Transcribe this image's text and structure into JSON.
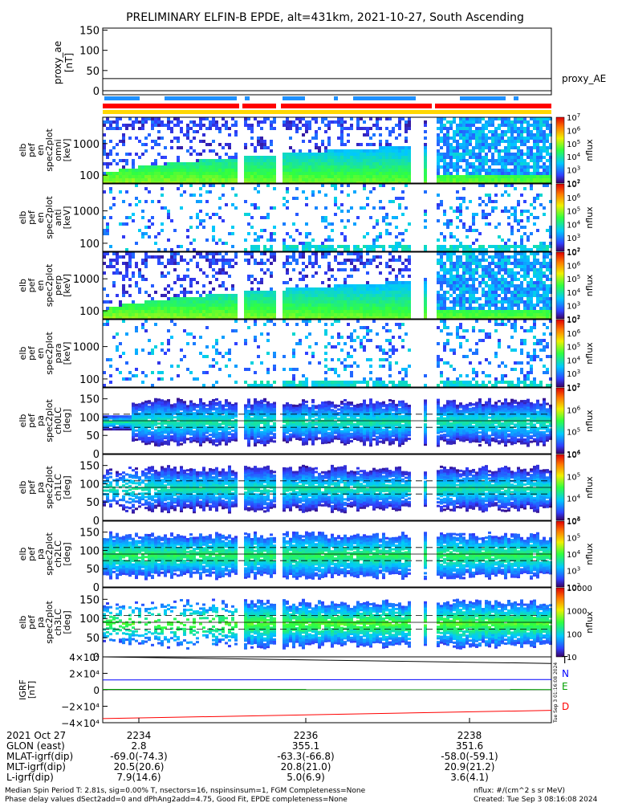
{
  "title": "PRELIMINARY ELFIN-B EPDE, alt=431km, 2021-10-27, South Ascending",
  "chart_data": [
    {
      "type": "line",
      "panel": "proxy_ae",
      "ylabel": "proxy_ae\n[nT]",
      "yticks": [
        "150",
        "100",
        "50",
        "0"
      ],
      "ylim": [
        -10,
        155
      ],
      "series": [
        {
          "name": "proxy_AE",
          "values": [
            30,
            30
          ]
        }
      ],
      "legend": "proxy_AE"
    },
    {
      "type": "heatmap",
      "panel": "pef_en_spec2plot_omni",
      "ylabel": "elb\npef\nen\nspec2plot\nomni\n[keV]",
      "yticks": [
        "1000",
        "100"
      ],
      "yscale": "log",
      "colorbar": {
        "label": "nflux",
        "scale": "log",
        "range": [
          100,
          10000000
        ],
        "ticks": [
          "10",
          "10",
          "10",
          "10",
          "10",
          "10"
        ],
        "exponents": [
          "7",
          "6",
          "5",
          "4",
          "3",
          "2"
        ]
      }
    },
    {
      "type": "heatmap",
      "panel": "pef_en_spec2plot_anti",
      "ylabel": "elb\npef\nen\nspec2plot\nanti\n[keV]",
      "yticks": [
        "1000",
        "100"
      ],
      "yscale": "log",
      "colorbar": {
        "label": "nflux",
        "scale": "log",
        "range": [
          100,
          10000000
        ],
        "ticks": [
          "10",
          "10",
          "10",
          "10",
          "10",
          "10"
        ],
        "exponents": [
          "7",
          "6",
          "5",
          "4",
          "3",
          "2"
        ]
      }
    },
    {
      "type": "heatmap",
      "panel": "pef_en_spec2plot_perp",
      "ylabel": "elb\npef\nen\nspec2plot\nperp\n[keV]",
      "yticks": [
        "1000",
        "100"
      ],
      "yscale": "log",
      "colorbar": {
        "label": "nflux",
        "scale": "log",
        "range": [
          100,
          10000000
        ],
        "ticks": [
          "10",
          "10",
          "10",
          "10",
          "10",
          "10"
        ],
        "exponents": [
          "7",
          "6",
          "5",
          "4",
          "3",
          "2"
        ]
      }
    },
    {
      "type": "heatmap",
      "panel": "pef_en_spec2plot_para",
      "ylabel": "elb\npef\nen\nspec2plot\npara\n[keV]",
      "yticks": [
        "1000",
        "100"
      ],
      "yscale": "log",
      "colorbar": {
        "label": "nflux",
        "scale": "log",
        "range": [
          100,
          10000000
        ],
        "ticks": [
          "10",
          "10",
          "10",
          "10",
          "10",
          "10"
        ],
        "exponents": [
          "7",
          "6",
          "5",
          "4",
          "3",
          "2"
        ]
      }
    },
    {
      "type": "heatmap",
      "panel": "pef_pa_spec2plot_ch0LC",
      "ylabel": "elb\npef\npa\nspec2plot\nch0LC\n[deg]",
      "yticks": [
        "150",
        "100",
        "50",
        "0"
      ],
      "colorbar": {
        "label": "nflux",
        "scale": "log",
        "range": [
          10000,
          10000000
        ],
        "ticks": [
          "10",
          "10",
          "10",
          "10"
        ],
        "exponents": [
          "7",
          "6",
          "5",
          "4"
        ]
      }
    },
    {
      "type": "heatmap",
      "panel": "pef_pa_spec2plot_ch1LC",
      "ylabel": "elb\npef\npa\nspec2plot\nch1LC\n[deg]",
      "yticks": [
        "150",
        "100",
        "50",
        "0"
      ],
      "colorbar": {
        "label": "nflux",
        "scale": "log",
        "range": [
          1000,
          1000000
        ],
        "ticks": [
          "10",
          "10",
          "10",
          "10"
        ],
        "exponents": [
          "6",
          "5",
          "4",
          "3"
        ]
      }
    },
    {
      "type": "heatmap",
      "panel": "pef_pa_spec2plot_ch2LC",
      "ylabel": "elb\npef\npa\nspec2plot\nch2LC\n[deg]",
      "yticks": [
        "150",
        "100",
        "50",
        "0"
      ],
      "colorbar": {
        "label": "nflux",
        "scale": "log",
        "range": [
          100,
          1000000
        ],
        "ticks": [
          "10",
          "10",
          "10",
          "10",
          "10"
        ],
        "exponents": [
          "6",
          "5",
          "4",
          "3",
          "2"
        ]
      }
    },
    {
      "type": "heatmap",
      "panel": "pef_pa_spec2plot_ch3LC",
      "ylabel": "elb\npef\npa\nspec2plot\nch3LC\n[deg]",
      "yticks": [
        "150",
        "100",
        "50",
        "0"
      ],
      "colorbar": {
        "label": "nflux",
        "scale": "log",
        "range": [
          10,
          10000
        ],
        "ticks": [
          "10000",
          "1000",
          "100",
          "10"
        ]
      }
    },
    {
      "type": "line",
      "panel": "igrf",
      "ylabel": "IGRF\n[nT]",
      "yticks": [
        "4×10⁴",
        "2×10⁴",
        "0",
        "−2×10⁴",
        "−4×10⁴"
      ],
      "ylim": [
        -40000,
        40000
      ],
      "series": [
        {
          "name": "T",
          "values": [
            40000,
            32000
          ]
        },
        {
          "name": "N",
          "values": [
            12000,
            12500
          ]
        },
        {
          "name": "E",
          "values": [
            500,
            300
          ]
        },
        {
          "name": "D",
          "values": [
            -35000,
            -25000
          ]
        }
      ]
    }
  ],
  "colors": {
    "T": "#000000",
    "N": "#0000ff",
    "E": "#00a000",
    "D": "#ff0000",
    "blue_bar": "#1e90ff",
    "red_bar": "#ff0000",
    "yellow_bar": "#ffd700"
  },
  "side_stamp": "Tue Sep  3 01:16:08 2024",
  "ephemeris": {
    "labels": [
      "2021 Oct 27",
      "GLON (east)",
      "MLAT-igrf(dip)",
      "MLT-igrf(dip)",
      "L-igrf(dip)"
    ],
    "columns": [
      {
        "time": "2234",
        "glon": "2.8",
        "mlat": "-69.0(-74.3)",
        "mlt": "20.5(20.6)",
        "l": "7.9(14.6)"
      },
      {
        "time": "2236",
        "glon": "355.1",
        "mlat": "-63.3(-66.8)",
        "mlt": "20.8(21.0)",
        "l": "5.0(6.9)"
      },
      {
        "time": "2238",
        "glon": "351.6",
        "mlat": "-58.0(-59.1)",
        "mlt": "20.9(21.2)",
        "l": "3.6(4.1)"
      }
    ]
  },
  "footer": {
    "line1": "Median Spin Period T: 2.81s, sig=0.00% T, nsectors=16, nspinsinsum=1, FGM Completeness=None",
    "line2": "Phase delay values dSect2add=0 and dPhAng2add=4.75, Good Fit, EPDE completeness=None",
    "units": "nflux: #/(cm^2 s sr MeV)",
    "created": "Created: Tue Sep  3 08:16:08 2024"
  }
}
